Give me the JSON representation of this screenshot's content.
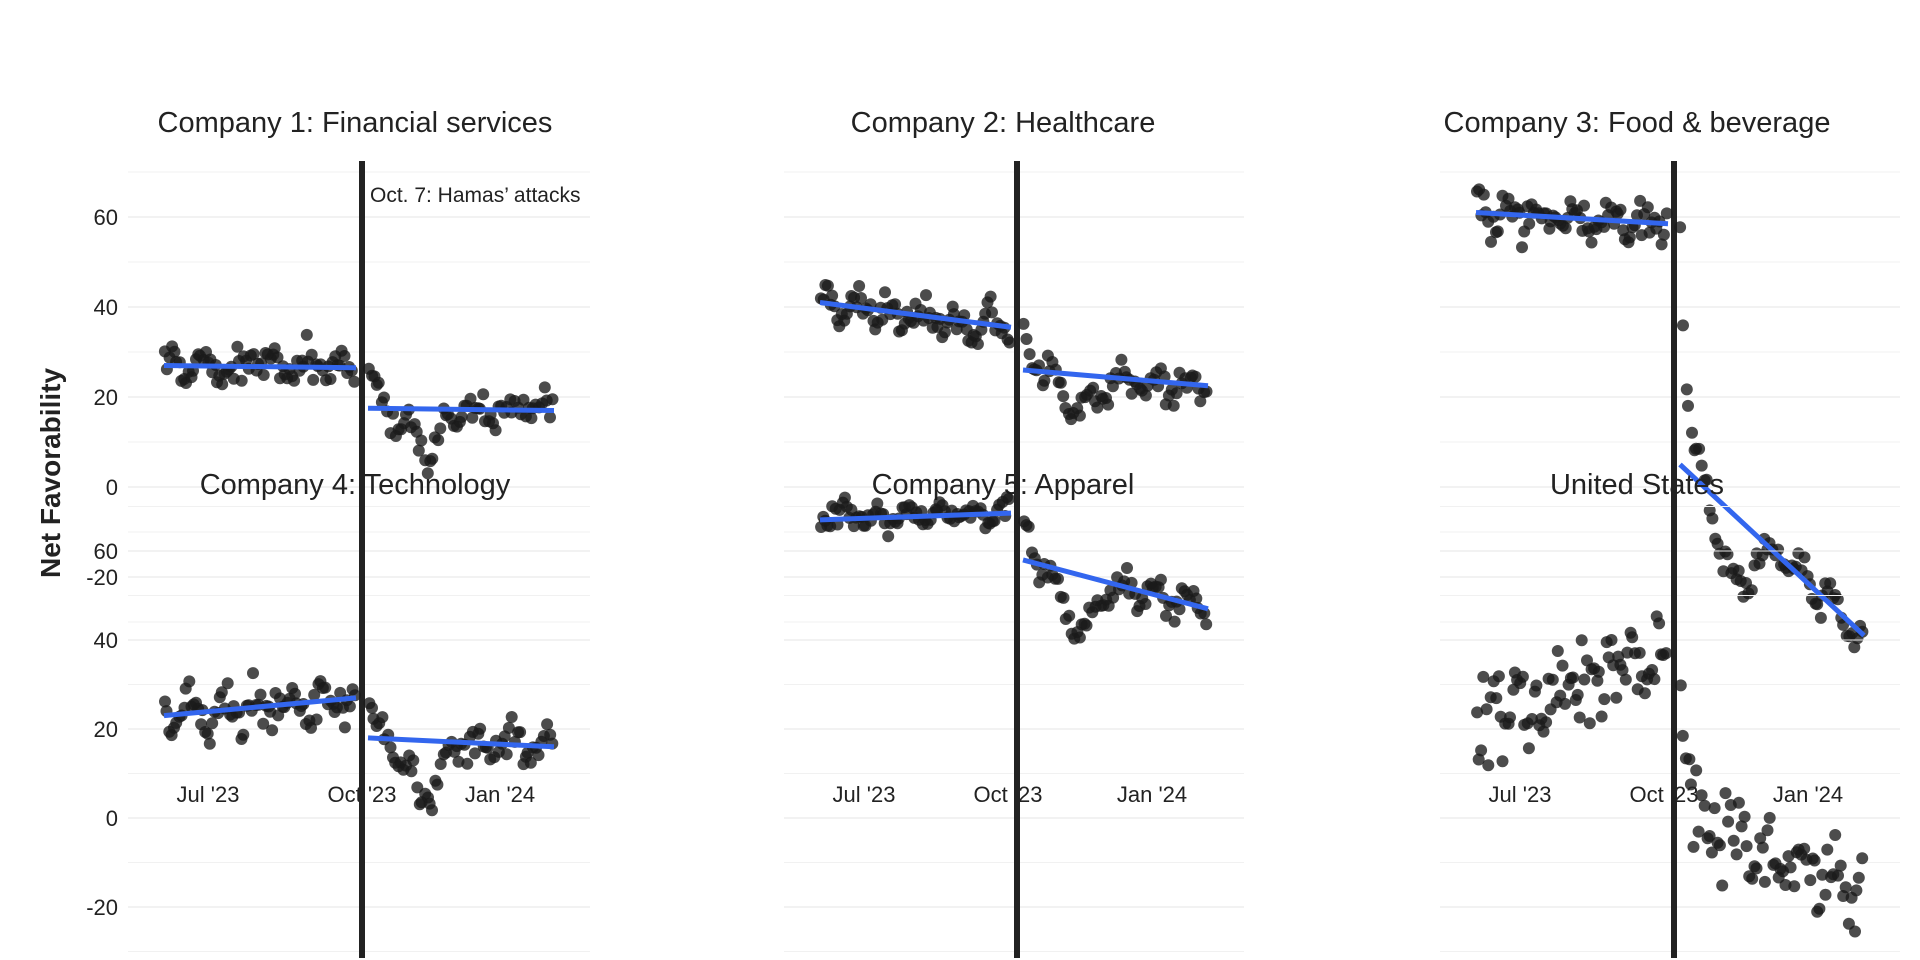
{
  "ylabel": "Net Favorability",
  "chart_data": {
    "type": "scatter",
    "x_tick_labels": [
      "Jul '23",
      "Oct '23",
      "Jan '24"
    ],
    "y_tick_labels": [
      "60",
      "40",
      "20",
      "0",
      "-20"
    ],
    "ylim": [
      -31,
      72
    ],
    "event": {
      "date": "Oct '23",
      "label": "Oct. 7: Hamas’ attacks"
    },
    "panels": [
      {
        "title": "Company 1: Financial services",
        "pre": {
          "mean": 27,
          "slope": 0,
          "noise": 2.5,
          "wave": 2
        },
        "post": {
          "dip": 9,
          "noise": 2.5,
          "wave": 2
        },
        "trend_pre": [
          27,
          26.5
        ],
        "trend_post": [
          17.5,
          17
        ]
      },
      {
        "title": "Company 2: Healthcare",
        "pre": {
          "mean": 38,
          "slope": -5,
          "noise": 2.5,
          "wave": 2
        },
        "post": {
          "dip": 8,
          "noise": 2.5,
          "wave": 2
        },
        "trend_pre": [
          41,
          35.5
        ],
        "trend_post": [
          26,
          22.5
        ]
      },
      {
        "title": "Company 3: Food & beverage",
        "pre": {
          "mean": 60,
          "slope": -2,
          "noise": 3,
          "wave": 2
        },
        "post": {
          "dip": 15,
          "noise": 2.5,
          "wave": 2.5
        },
        "trend_pre": [
          61,
          58.5
        ],
        "trend_post": [
          5,
          -33
        ]
      },
      {
        "title": "Company 4: Technology",
        "pre": {
          "mean": 25,
          "slope": 4,
          "noise": 3.5,
          "wave": 2.5
        },
        "post": {
          "dip": 12,
          "noise": 3,
          "wave": 2.5
        },
        "trend_pre": [
          23,
          27
        ],
        "trend_post": [
          18,
          16
        ]
      },
      {
        "title": "Company 5: Apparel",
        "pre": {
          "mean": 68,
          "slope": 1,
          "noise": 1.8,
          "wave": 1.5
        },
        "post": {
          "dip": 12,
          "noise": 2,
          "wave": 2
        },
        "trend_pre": [
          67,
          68.5
        ],
        "trend_post": [
          58,
          47
        ]
      },
      {
        "title": "United States",
        "pre": {
          "mean": 30,
          "slope": 14,
          "noise": 7,
          "wave": 3
        },
        "post": {
          "dip": 0,
          "noise": 6,
          "wave": 3
        },
        "trend_pre": null,
        "trend_post": null
      }
    ]
  }
}
